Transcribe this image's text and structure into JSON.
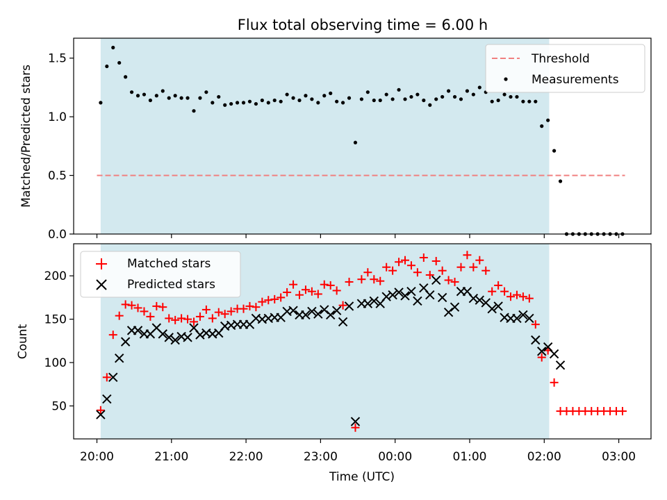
{
  "chart_data": [
    {
      "type": "scatter",
      "title": "Flux total observing time = 6.00 h",
      "xlabel": "",
      "ylabel": "Matched/Predicted stars",
      "ylim": [
        0,
        1.67
      ],
      "yticks": [
        "0.0",
        "0.5",
        "1.0",
        "1.5"
      ],
      "x_axis": "shared time axis (UTC), hours since 20:00",
      "shaded_interval": [
        "20:03",
        "02:04"
      ],
      "shade_color": "#d3e9ef",
      "legend_position": "top-right",
      "threshold": {
        "name": "Threshold",
        "value": 0.5,
        "x_range": [
          "20:00",
          "03:05"
        ],
        "color": "#f08080",
        "style": "dashed"
      },
      "series": [
        {
          "name": "Measurements",
          "color": "#000000",
          "marker": "dot",
          "points": [
            [
              "20:03",
              1.12
            ],
            [
              "20:08",
              1.43
            ],
            [
              "20:13",
              1.59
            ],
            [
              "20:18",
              1.46
            ],
            [
              "20:23",
              1.34
            ],
            [
              "20:28",
              1.21
            ],
            [
              "20:33",
              1.18
            ],
            [
              "20:38",
              1.19
            ],
            [
              "20:43",
              1.14
            ],
            [
              "20:48",
              1.18
            ],
            [
              "20:53",
              1.22
            ],
            [
              "20:58",
              1.16
            ],
            [
              "21:03",
              1.18
            ],
            [
              "21:08",
              1.16
            ],
            [
              "21:13",
              1.16
            ],
            [
              "21:18",
              1.05
            ],
            [
              "21:23",
              1.16
            ],
            [
              "21:28",
              1.21
            ],
            [
              "21:33",
              1.12
            ],
            [
              "21:38",
              1.17
            ],
            [
              "21:43",
              1.1
            ],
            [
              "21:48",
              1.11
            ],
            [
              "21:53",
              1.12
            ],
            [
              "21:58",
              1.12
            ],
            [
              "22:03",
              1.13
            ],
            [
              "22:08",
              1.11
            ],
            [
              "22:13",
              1.14
            ],
            [
              "22:18",
              1.12
            ],
            [
              "22:23",
              1.14
            ],
            [
              "22:28",
              1.13
            ],
            [
              "22:33",
              1.19
            ],
            [
              "22:38",
              1.16
            ],
            [
              "22:43",
              1.14
            ],
            [
              "22:48",
              1.18
            ],
            [
              "22:53",
              1.15
            ],
            [
              "22:58",
              1.12
            ],
            [
              "23:03",
              1.18
            ],
            [
              "23:08",
              1.2
            ],
            [
              "23:13",
              1.13
            ],
            [
              "23:18",
              1.12
            ],
            [
              "23:23",
              1.16
            ],
            [
              "23:28",
              0.78
            ],
            [
              "23:33",
              1.15
            ],
            [
              "23:38",
              1.21
            ],
            [
              "23:43",
              1.14
            ],
            [
              "23:48",
              1.14
            ],
            [
              "23:53",
              1.19
            ],
            [
              "23:58",
              1.15
            ],
            [
              "00:03",
              1.23
            ],
            [
              "00:08",
              1.15
            ],
            [
              "00:13",
              1.17
            ],
            [
              "00:18",
              1.19
            ],
            [
              "00:23",
              1.14
            ],
            [
              "00:28",
              1.1
            ],
            [
              "00:33",
              1.15
            ],
            [
              "00:38",
              1.17
            ],
            [
              "00:43",
              1.22
            ],
            [
              "00:48",
              1.17
            ],
            [
              "00:53",
              1.15
            ],
            [
              "00:58",
              1.22
            ],
            [
              "01:03",
              1.19
            ],
            [
              "01:08",
              1.25
            ],
            [
              "01:13",
              1.21
            ],
            [
              "01:18",
              1.13
            ],
            [
              "01:23",
              1.14
            ],
            [
              "01:28",
              1.19
            ],
            [
              "01:33",
              1.17
            ],
            [
              "01:38",
              1.17
            ],
            [
              "01:43",
              1.13
            ],
            [
              "01:48",
              1.13
            ],
            [
              "01:53",
              1.13
            ],
            [
              "01:58",
              0.92
            ],
            [
              "02:03",
              0.97
            ],
            [
              "02:08",
              0.71
            ],
            [
              "02:13",
              0.45
            ],
            [
              "02:18",
              0.0
            ],
            [
              "02:23",
              0.0
            ],
            [
              "02:28",
              0.0
            ],
            [
              "02:33",
              0.0
            ],
            [
              "02:38",
              0.0
            ],
            [
              "02:43",
              0.0
            ],
            [
              "02:48",
              0.0
            ],
            [
              "02:53",
              0.0
            ],
            [
              "02:58",
              0.0
            ],
            [
              "03:03",
              0.0
            ]
          ]
        }
      ]
    },
    {
      "type": "scatter",
      "title": "",
      "xlabel": "Time (UTC)",
      "ylabel": "Count",
      "ylim": [
        12,
        237
      ],
      "yticks": [
        "50",
        "100",
        "150",
        "200"
      ],
      "xticks": [
        "20:00",
        "21:00",
        "22:00",
        "23:00",
        "00:00",
        "01:00",
        "02:00",
        "03:00"
      ],
      "shaded_interval": [
        "20:03",
        "02:04"
      ],
      "shade_color": "#d3e9ef",
      "legend_position": "top-left",
      "series": [
        {
          "name": "Matched stars",
          "color": "#ff0000",
          "marker": "plus",
          "points": [
            [
              "20:03",
              45
            ],
            [
              "20:08",
              83
            ],
            [
              "20:13",
              132
            ],
            [
              "20:18",
              154
            ],
            [
              "20:23",
              167
            ],
            [
              "20:28",
              166
            ],
            [
              "20:33",
              163
            ],
            [
              "20:38",
              159
            ],
            [
              "20:43",
              153
            ],
            [
              "20:48",
              165
            ],
            [
              "20:53",
              164
            ],
            [
              "20:58",
              151
            ],
            [
              "21:03",
              149
            ],
            [
              "21:08",
              151
            ],
            [
              "21:13",
              150
            ],
            [
              "21:18",
              147
            ],
            [
              "21:23",
              153
            ],
            [
              "21:28",
              161
            ],
            [
              "21:33",
              151
            ],
            [
              "21:38",
              158
            ],
            [
              "21:43",
              156
            ],
            [
              "21:48",
              159
            ],
            [
              "21:53",
              162
            ],
            [
              "21:58",
              162
            ],
            [
              "22:03",
              165
            ],
            [
              "22:08",
              164
            ],
            [
              "22:13",
              170
            ],
            [
              "22:18",
              172
            ],
            [
              "22:23",
              173
            ],
            [
              "22:28",
              175
            ],
            [
              "22:33",
              181
            ],
            [
              "22:38",
              190
            ],
            [
              "22:43",
              178
            ],
            [
              "22:48",
              184
            ],
            [
              "22:53",
              182
            ],
            [
              "22:58",
              179
            ],
            [
              "23:03",
              190
            ],
            [
              "23:08",
              189
            ],
            [
              "23:13",
              183
            ],
            [
              "23:18",
              166
            ],
            [
              "23:23",
              193
            ],
            [
              "23:28",
              25
            ],
            [
              "23:33",
              196
            ],
            [
              "23:38",
              204
            ],
            [
              "23:43",
              196
            ],
            [
              "23:48",
              194
            ],
            [
              "23:53",
              210
            ],
            [
              "23:58",
              206
            ],
            [
              "00:03",
              216
            ],
            [
              "00:08",
              218
            ],
            [
              "00:13",
              212
            ],
            [
              "00:18",
              204
            ],
            [
              "00:23",
              221
            ],
            [
              "00:28",
              201
            ],
            [
              "00:33",
              217
            ],
            [
              "00:38",
              206
            ],
            [
              "00:43",
              195
            ],
            [
              "00:48",
              193
            ],
            [
              "00:53",
              210
            ],
            [
              "00:58",
              224
            ],
            [
              "01:03",
              210
            ],
            [
              "01:08",
              218
            ],
            [
              "01:13",
              206
            ],
            [
              "01:18",
              182
            ],
            [
              "01:23",
              189
            ],
            [
              "01:28",
              182
            ],
            [
              "01:33",
              176
            ],
            [
              "01:38",
              178
            ],
            [
              "01:43",
              176
            ],
            [
              "01:48",
              174
            ],
            [
              "01:53",
              144
            ],
            [
              "01:58",
              106
            ],
            [
              "02:03",
              114
            ],
            [
              "02:08",
              77
            ],
            [
              "02:13",
              44
            ],
            [
              "02:18",
              44
            ],
            [
              "02:23",
              44
            ],
            [
              "02:28",
              44
            ],
            [
              "02:33",
              44
            ],
            [
              "02:38",
              44
            ],
            [
              "02:43",
              44
            ],
            [
              "02:48",
              44
            ],
            [
              "02:53",
              44
            ],
            [
              "02:58",
              44
            ],
            [
              "03:03",
              44
            ]
          ]
        },
        {
          "name": "Predicted stars",
          "color": "#000000",
          "marker": "cross",
          "points": [
            [
              "20:03",
              40
            ],
            [
              "20:08",
              58
            ],
            [
              "20:13",
              83
            ],
            [
              "20:18",
              105
            ],
            [
              "20:23",
              124
            ],
            [
              "20:28",
              137
            ],
            [
              "20:33",
              137
            ],
            [
              "20:38",
              133
            ],
            [
              "20:43",
              133
            ],
            [
              "20:48",
              140
            ],
            [
              "20:53",
              133
            ],
            [
              "20:58",
              129
            ],
            [
              "21:03",
              126
            ],
            [
              "21:08",
              130
            ],
            [
              "21:13",
              129
            ],
            [
              "21:18",
              140
            ],
            [
              "21:23",
              132
            ],
            [
              "21:28",
              134
            ],
            [
              "21:33",
              133
            ],
            [
              "21:38",
              134
            ],
            [
              "21:43",
              142
            ],
            [
              "21:48",
              143
            ],
            [
              "21:53",
              144
            ],
            [
              "21:58",
              144
            ],
            [
              "22:03",
              144
            ],
            [
              "22:08",
              151
            ],
            [
              "22:13",
              150
            ],
            [
              "22:18",
              151
            ],
            [
              "22:23",
              152
            ],
            [
              "22:28",
              152
            ],
            [
              "22:33",
              159
            ],
            [
              "22:38",
              160
            ],
            [
              "22:43",
              155
            ],
            [
              "22:48",
              155
            ],
            [
              "22:53",
              159
            ],
            [
              "22:58",
              156
            ],
            [
              "23:03",
              161
            ],
            [
              "23:08",
              155
            ],
            [
              "23:13",
              160
            ],
            [
              "23:18",
              147
            ],
            [
              "23:23",
              165
            ],
            [
              "23:28",
              32
            ],
            [
              "23:33",
              168
            ],
            [
              "23:38",
              168
            ],
            [
              "23:43",
              171
            ],
            [
              "23:48",
              168
            ],
            [
              "23:53",
              176
            ],
            [
              "23:58",
              178
            ],
            [
              "00:03",
              181
            ],
            [
              "00:08",
              177
            ],
            [
              "00:13",
              182
            ],
            [
              "00:18",
              171
            ],
            [
              "00:23",
              186
            ],
            [
              "00:28",
              178
            ],
            [
              "00:33",
              195
            ],
            [
              "00:38",
              175
            ],
            [
              "00:43",
              158
            ],
            [
              "00:48",
              164
            ],
            [
              "00:53",
              182
            ],
            [
              "00:58",
              182
            ],
            [
              "01:03",
              174
            ],
            [
              "01:08",
              172
            ],
            [
              "01:13",
              169
            ],
            [
              "01:18",
              162
            ],
            [
              "01:23",
              165
            ],
            [
              "01:28",
              152
            ],
            [
              "01:33",
              151
            ],
            [
              "01:38",
              151
            ],
            [
              "01:43",
              155
            ],
            [
              "01:48",
              151
            ],
            [
              "01:53",
              126
            ],
            [
              "01:58",
              113
            ],
            [
              "02:03",
              118
            ],
            [
              "02:08",
              110
            ],
            [
              "02:13",
              97
            ]
          ]
        }
      ]
    }
  ]
}
